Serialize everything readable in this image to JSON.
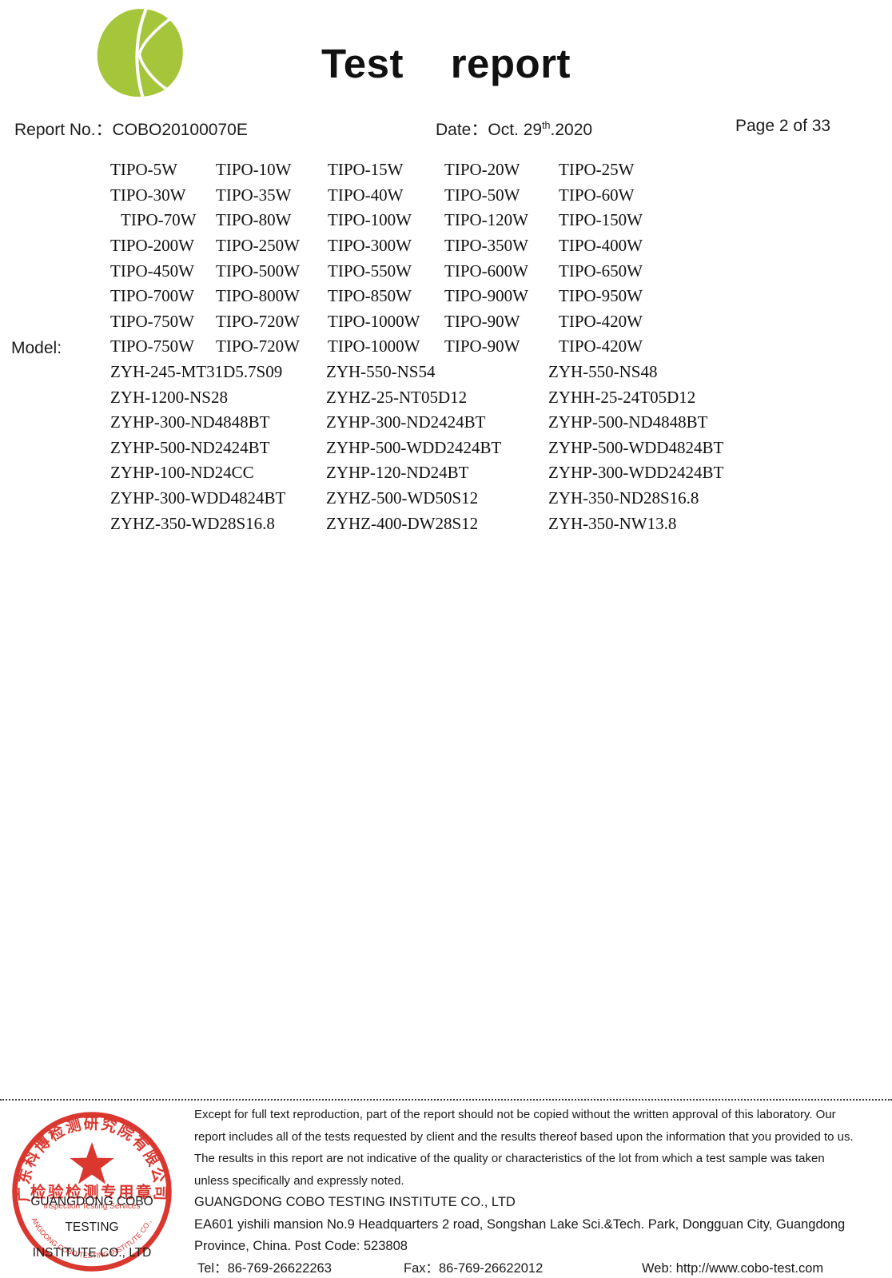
{
  "header": {
    "title": "Test    report",
    "report_no": "Report No.：COBO20100070E",
    "date_label": "Date：",
    "date_day": "Oct. 29",
    "date_sup": "th",
    "date_year": ".2020",
    "page_indicator": "Page 2 of 33",
    "logo_color": "#a5c63b"
  },
  "model_section": {
    "label": "Model:",
    "tipo_rows": [
      [
        "TIPO-5W",
        "TIPO-10W",
        "TIPO-15W",
        "TIPO-20W",
        "TIPO-25W"
      ],
      [
        "TIPO-30W",
        "TIPO-35W",
        "TIPO-40W",
        "TIPO-50W",
        "TIPO-60W"
      ],
      [
        "TIPO-70W",
        "TIPO-80W",
        "TIPO-100W",
        "TIPO-120W",
        "TIPO-150W"
      ],
      [
        "TIPO-200W",
        "TIPO-250W",
        "TIPO-300W",
        "TIPO-350W",
        "TIPO-400W"
      ],
      [
        "TIPO-450W",
        "TIPO-500W",
        "TIPO-550W",
        "TIPO-600W",
        "TIPO-650W"
      ],
      [
        "TIPO-700W",
        "TIPO-800W",
        "TIPO-850W",
        "TIPO-900W",
        "TIPO-950W"
      ],
      [
        "TIPO-750W",
        "TIPO-720W",
        "TIPO-1000W",
        "TIPO-90W",
        "TIPO-420W"
      ],
      [
        "TIPO-750W",
        "TIPO-720W",
        "TIPO-1000W",
        "TIPO-90W",
        "TIPO-420W"
      ]
    ],
    "zyh_rows": [
      [
        "ZYH-245-MT31D5.7S09",
        "ZYH-550-NS54",
        "ZYH-550-NS48"
      ],
      [
        "ZYH-1200-NS28",
        "ZYHZ-25-NT05D12",
        "ZYHH-25-24T05D12"
      ],
      [
        "ZYHP-300-ND4848BT",
        "ZYHP-300-ND2424BT",
        "ZYHP-500-ND4848BT"
      ],
      [
        "ZYHP-500-ND2424BT",
        "ZYHP-500-WDD2424BT",
        "ZYHP-500-WDD4824BT"
      ],
      [
        "ZYHP-100-ND24CC",
        "ZYHP-120-ND24BT",
        "ZYHP-300-WDD2424BT"
      ],
      [
        "ZYHP-300-WDD4824BT",
        "ZYHZ-500-WD50S12",
        "ZYH-350-ND28S16.8"
      ],
      [
        "ZYHZ-350-WD28S16.8",
        "ZYHZ-400-DW28S12",
        "ZYH-350-NW13.8"
      ]
    ]
  },
  "footer": {
    "disclaimer_lines": [
      "Except for full text reproduction, part of the report should not be copied without the written approval of this laboratory. Our",
      "report includes all of the tests requested by client and the results thereof based upon the information that you provided to us.",
      "The results in this report are not indicative of the quality or characteristics of the lot from which a test sample was taken",
      "unless specifically and expressly noted."
    ],
    "company_name": "GUANGDONG COBO TESTING INSTITUTE CO., LTD",
    "address_line1": "EA601 yishili mansion No.9 Headquarters 2 road, Songshan Lake Sci.&Tech. Park, Dongguan City, Guangdong",
    "address_line2": "Province, China. Post Code: 523808",
    "tel": "Tel：86-769-26622263",
    "fax": "Fax：86-769-26622012",
    "web": "Web: http://www.cobo-test.com",
    "stamp": {
      "ring_color": "#da372f",
      "arc_text_cn": "广东科博检测研究院有限公司",
      "seal_line_cn": "检验检测专用章",
      "seal_line_en": "Inspection Testing Services",
      "arc_text_en": "GUANGDONG COBO TESTING INSTITUTE CO.,LTD",
      "overlay_line1": "GUANGDONG COBO TESTING",
      "overlay_line2": "INSTITUTE CO., LTD"
    }
  }
}
